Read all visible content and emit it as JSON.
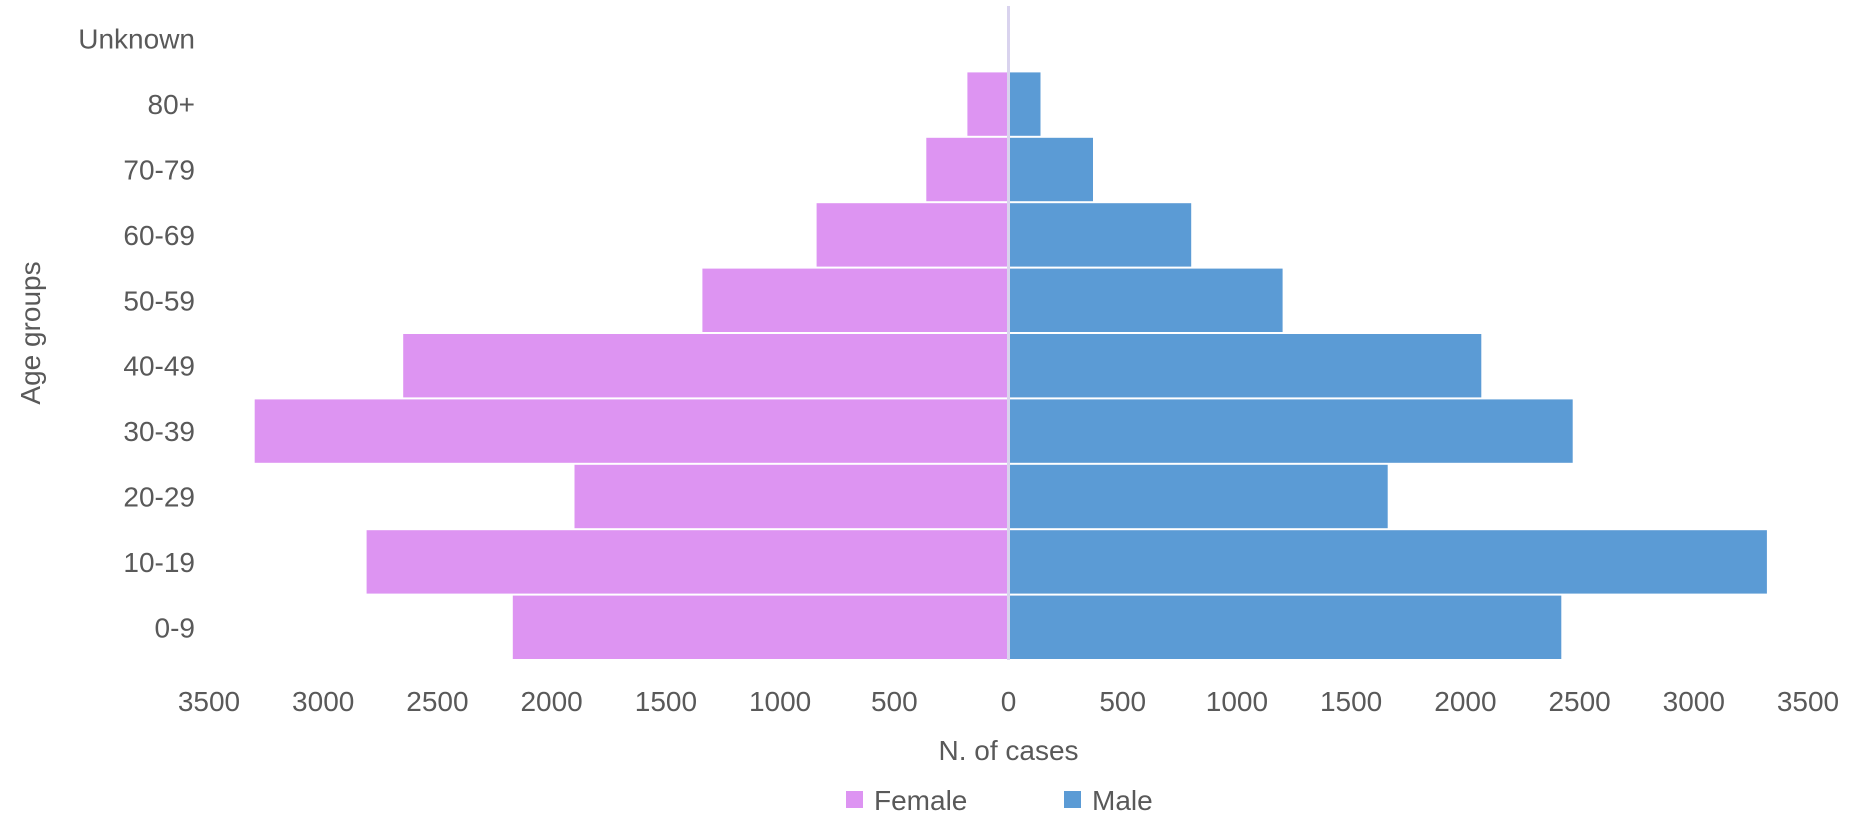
{
  "chart_data": {
    "type": "bar",
    "orientation": "horizontal",
    "subtype": "population-pyramid",
    "title": "",
    "xlabel": "N. of cases",
    "ylabel": "Age groups",
    "categories": [
      "Unknown",
      "80+",
      "70-79",
      "60-69",
      "50-59",
      "40-49",
      "30-39",
      "20-29",
      "10-19",
      "0-9"
    ],
    "series": [
      {
        "name": "Female",
        "side": "left",
        "color": "#DD94F2",
        "values": [
          0,
          180,
          360,
          840,
          1340,
          2650,
          3300,
          1900,
          2810,
          2170
        ]
      },
      {
        "name": "Male",
        "side": "right",
        "color": "#5B9BD5",
        "values": [
          0,
          140,
          370,
          800,
          1200,
          2070,
          2470,
          1660,
          3320,
          2420
        ]
      }
    ],
    "xlim": [
      -3500,
      3500
    ],
    "x_ticks": [
      -3500,
      -3000,
      -2500,
      -2000,
      -1500,
      -1000,
      -500,
      0,
      500,
      1000,
      1500,
      2000,
      2500,
      3000,
      3500
    ],
    "x_tick_labels": [
      "3500",
      "3000",
      "2500",
      "2000",
      "1500",
      "1000",
      "500",
      "0",
      "500",
      "1000",
      "1500",
      "2000",
      "2500",
      "3000",
      "3500"
    ],
    "grid": false,
    "legend_position": "bottom"
  }
}
